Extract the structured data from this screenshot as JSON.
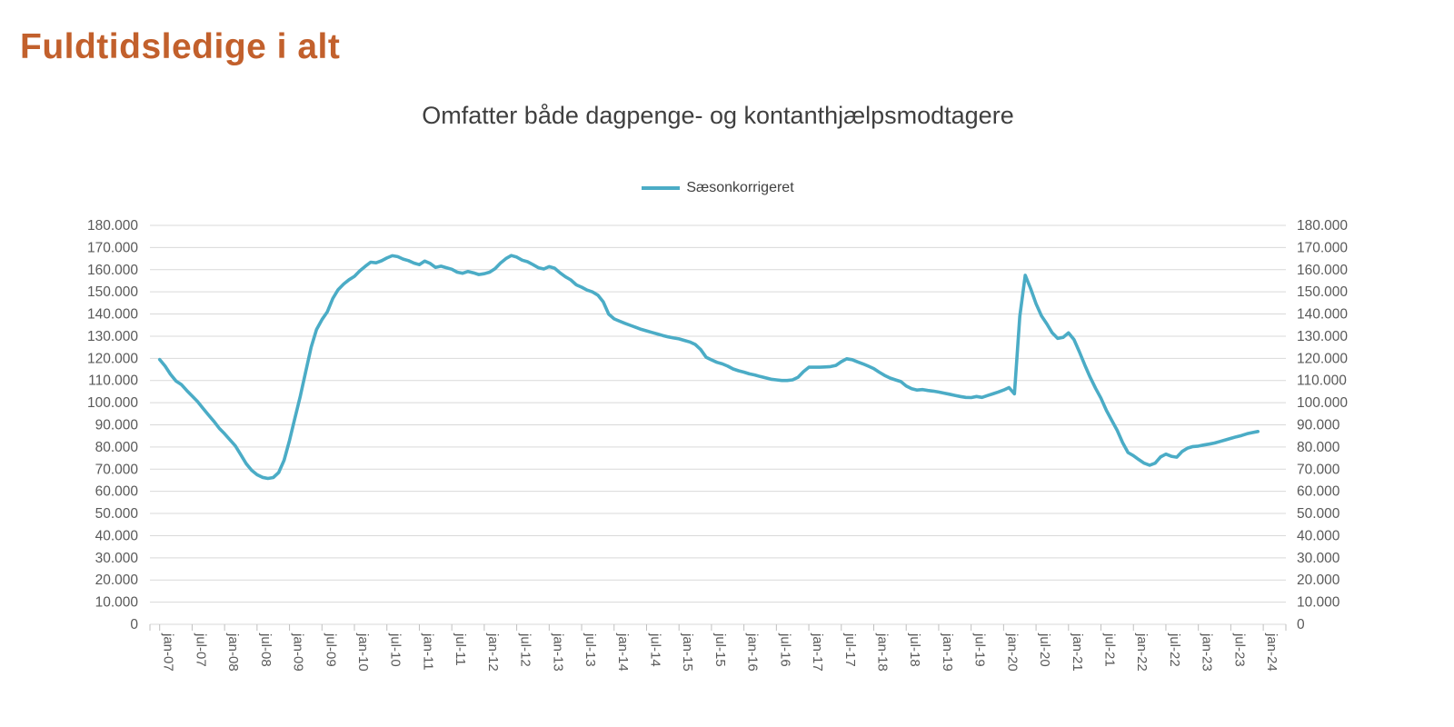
{
  "page": {
    "title": "Fuldtidsledige i alt"
  },
  "colors": {
    "title": "#c2602c",
    "subtitle_text": "#3f3f3f",
    "line": "#4bacc6",
    "grid": "#d9d9d9",
    "tick": "#bfbfbf",
    "axis_text": "#595959"
  },
  "chart_data": {
    "type": "line",
    "title": "Omfatter både dagpenge- og kontanthjælpsmodtagere",
    "legend_position": "top-center",
    "grid": true,
    "dual_y_axis": true,
    "ylim": [
      0,
      180000
    ],
    "y_tick_step": 10000,
    "y_tick_labels": [
      "0",
      "10.000",
      "20.000",
      "30.000",
      "40.000",
      "50.000",
      "60.000",
      "70.000",
      "80.000",
      "90.000",
      "100.000",
      "110.000",
      "120.000",
      "130.000",
      "140.000",
      "150.000",
      "160.000",
      "170.000",
      "180.000"
    ],
    "x_start": "jan-07",
    "x_frequency": "monthly",
    "x_tick_interval_months": 6,
    "x_tick_labels": [
      "jan-07",
      "jul-07",
      "jan-08",
      "jul-08",
      "jan-09",
      "jul-09",
      "jan-10",
      "jul-10",
      "jan-11",
      "jul-11",
      "jan-12",
      "jul-12",
      "jan-13",
      "jul-13",
      "jan-14",
      "jul-14",
      "jan-15",
      "jul-15",
      "jan-16",
      "jul-16",
      "jan-17",
      "jul-17",
      "jan-18",
      "jul-18",
      "jan-19",
      "jul-19",
      "jan-20",
      "jul-20",
      "jan-21",
      "jul-21",
      "jan-22",
      "jul-22",
      "jan-23",
      "jul-23",
      "jan-24"
    ],
    "series": [
      {
        "name": "Sæsonkorrigeret",
        "color": "#4bacc6",
        "values": [
          119500,
          116500,
          112800,
          109800,
          108200,
          105500,
          103000,
          100500,
          97500,
          94500,
          91700,
          88500,
          86000,
          83200,
          80500,
          76500,
          72500,
          69500,
          67500,
          66300,
          65800,
          66200,
          68500,
          74000,
          83000,
          93000,
          103000,
          114000,
          125000,
          133000,
          137500,
          141000,
          147000,
          151000,
          153500,
          155500,
          157000,
          159500,
          161500,
          163400,
          163100,
          164000,
          165300,
          166300,
          165900,
          164800,
          164100,
          163000,
          162300,
          163900,
          162800,
          161000,
          161600,
          160900,
          160200,
          158900,
          158400,
          159200,
          158600,
          157800,
          158200,
          158900,
          160500,
          163000,
          165000,
          166400,
          165700,
          164300,
          163600,
          162300,
          160900,
          160300,
          161400,
          160700,
          158600,
          156800,
          155400,
          153200,
          152100,
          150800,
          150000,
          148500,
          145500,
          140000,
          137800,
          136800,
          135800,
          134900,
          134000,
          133100,
          132400,
          131700,
          131000,
          130300,
          129700,
          129200,
          128800,
          128100,
          127400,
          126300,
          124000,
          120500,
          119300,
          118200,
          117500,
          116500,
          115200,
          114400,
          113800,
          113000,
          112500,
          111800,
          111200,
          110600,
          110300,
          110000,
          110000,
          110300,
          111500,
          114000,
          116000,
          116000,
          116000,
          116100,
          116300,
          116800,
          118500,
          119800,
          119400,
          118400,
          117500,
          116500,
          115400,
          113800,
          112300,
          111100,
          110300,
          109500,
          107500,
          106300,
          105700,
          105900,
          105500,
          105200,
          104800,
          104300,
          103800,
          103300,
          102800,
          102400,
          102300,
          102800,
          102400,
          103200,
          104000,
          104800,
          105700,
          106800,
          104000,
          139000,
          157500,
          151500,
          144600,
          139200,
          135500,
          131500,
          129000,
          129500,
          131500,
          128500,
          123000,
          117000,
          111500,
          106500,
          102000,
          96500,
          92000,
          87500,
          82000,
          77500,
          76100,
          74300,
          72700,
          71800,
          72700,
          75500,
          76800,
          75800,
          75400,
          78000,
          79500,
          80200,
          80400,
          80900,
          81300,
          81800,
          82500,
          83200,
          83900,
          84600,
          85200,
          86000,
          86500,
          87000
        ]
      }
    ]
  }
}
